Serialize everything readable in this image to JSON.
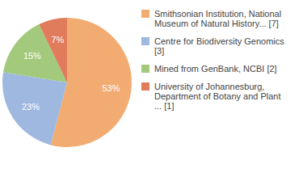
{
  "chart_data": {
    "type": "pie",
    "categories": [
      "Smithsonian Institution, National Museum of Natural History... [7]",
      "Centre for Biodiversity Genomics [3]",
      "Mined from GenBank, NCBI [2]",
      "University of Johannesburg, Department of Botany and Plant ... [1]"
    ],
    "values": [
      53,
      23,
      15,
      7
    ],
    "value_labels": [
      "53%",
      "23%",
      "15%",
      "7%"
    ],
    "colors": [
      "#f2ab70",
      "#9fb8e0",
      "#a2c97c",
      "#e07b5c"
    ],
    "data_labels": true,
    "legend": "right"
  }
}
